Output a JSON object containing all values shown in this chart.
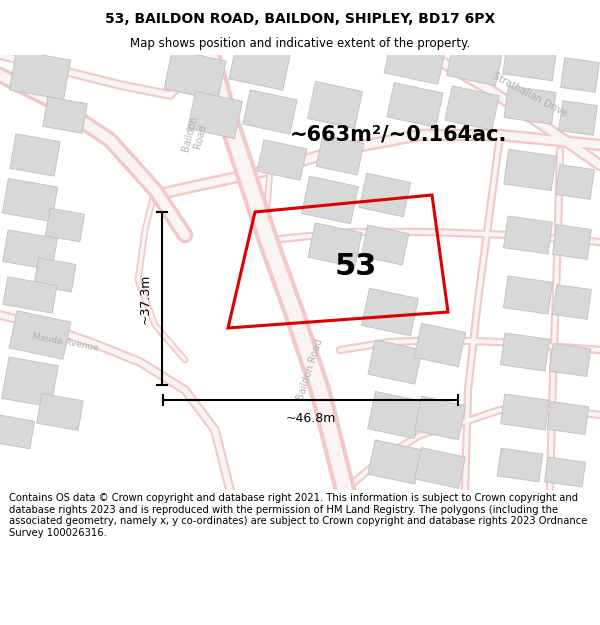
{
  "title": "53, BAILDON ROAD, BAILDON, SHIPLEY, BD17 6PX",
  "subtitle": "Map shows position and indicative extent of the property.",
  "area_text": "~663m²/~0.164ac.",
  "number_label": "53",
  "dim_width": "~46.8m",
  "dim_height": "~37.3m",
  "footer": "Contains OS data © Crown copyright and database right 2021. This information is subject to Crown copyright and database rights 2023 and is reproduced with the permission of HM Land Registry. The polygons (including the associated geometry, namely x, y co-ordinates) are subject to Crown copyright and database rights 2023 Ordnance Survey 100026316.",
  "bg_color": "#ffffff",
  "map_bg": "#f9f6f6",
  "road_outer": "#f5c8c8",
  "road_inner": "#faf4f4",
  "building_color": "#d8d8d8",
  "building_edge": "#c0c0c0",
  "property_color": "#dd0000",
  "road_label_color": "#b0b0b0",
  "title_color": "#000000",
  "footer_color": "#000000",
  "figsize": [
    6.0,
    6.25
  ],
  "dpi": 100
}
